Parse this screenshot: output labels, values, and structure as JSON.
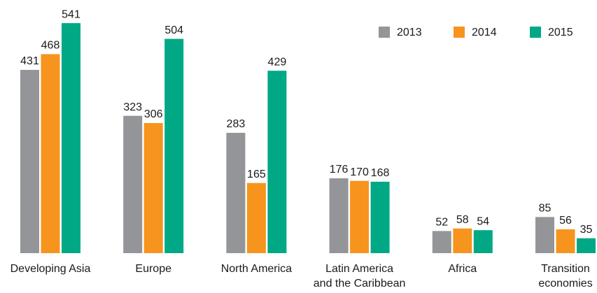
{
  "chart_data": {
    "type": "bar",
    "categories": [
      "Developing Asia",
      "Europe",
      "North America",
      [
        "Latin America",
        "and the Caribbean"
      ],
      "Africa",
      [
        "Transition",
        "economies"
      ]
    ],
    "series": [
      {
        "name": "2013",
        "color": "#939598",
        "values": [
          431,
          323,
          283,
          176,
          52,
          85
        ]
      },
      {
        "name": "2014",
        "color": "#f7941d",
        "values": [
          468,
          306,
          165,
          170,
          58,
          56
        ]
      },
      {
        "name": "2015",
        "color": "#00a886",
        "values": [
          541,
          504,
          429,
          168,
          54,
          35
        ]
      }
    ],
    "legend": "top-right"
  }
}
